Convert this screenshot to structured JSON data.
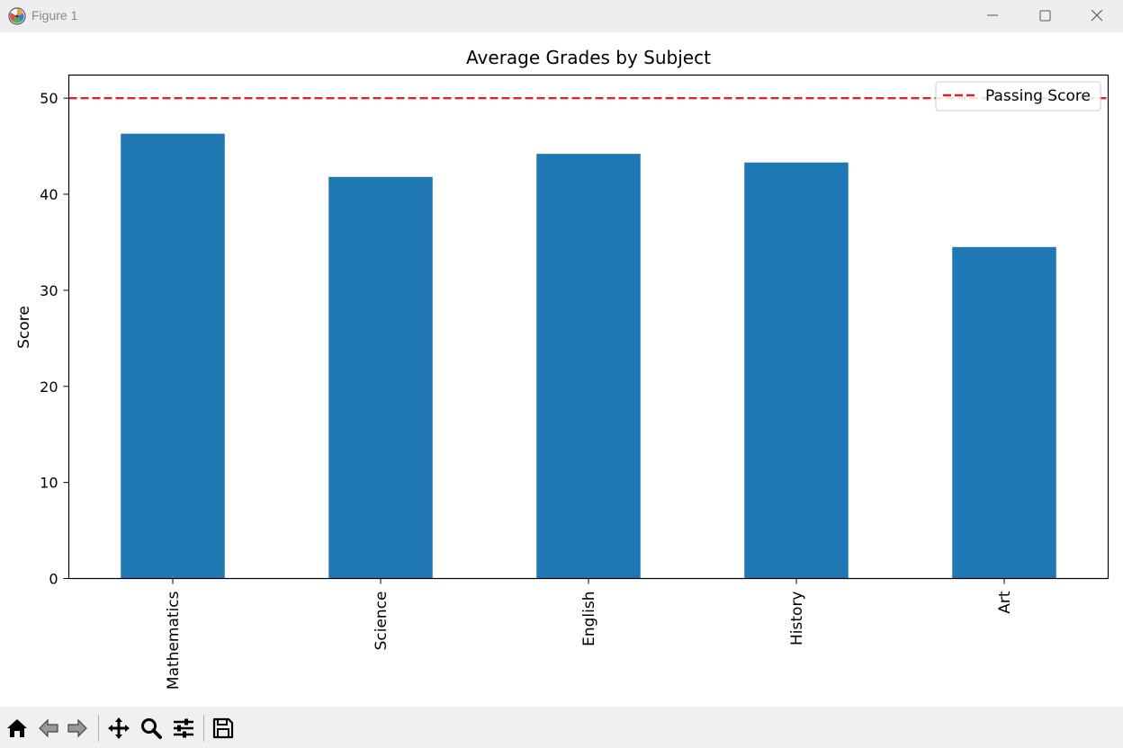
{
  "window": {
    "title": "Figure 1",
    "app_icon": "matplotlib-icon",
    "controls": [
      "minimize-icon",
      "maximize-icon",
      "close-icon"
    ]
  },
  "toolbar": {
    "tools": [
      "home-icon",
      "back-arrow-icon",
      "forward-arrow-icon",
      "pan-icon",
      "zoom-icon",
      "configure-subplots-icon",
      "save-icon"
    ]
  },
  "chart_data": {
    "type": "bar",
    "title": "Average Grades by Subject",
    "xlabel": "",
    "ylabel": "Score",
    "categories": [
      "Mathematics",
      "Science",
      "English",
      "History",
      "Art"
    ],
    "values": [
      46.3,
      41.8,
      44.2,
      43.3,
      34.5
    ],
    "bar_color": "#1f77b4",
    "ylim": [
      0,
      52.4
    ],
    "yticks": [
      0,
      10,
      20,
      30,
      40,
      50
    ],
    "ytick_labels": [
      "0",
      "10",
      "20",
      "30",
      "40",
      "50"
    ],
    "reference_line": {
      "label": "Passing Score",
      "value": 50,
      "color": "#d62728",
      "style": "dashed"
    },
    "legend": {
      "placement": "top-right",
      "entries": [
        "Passing Score"
      ]
    },
    "grid": false,
    "xtick_rotation": "vertical"
  }
}
